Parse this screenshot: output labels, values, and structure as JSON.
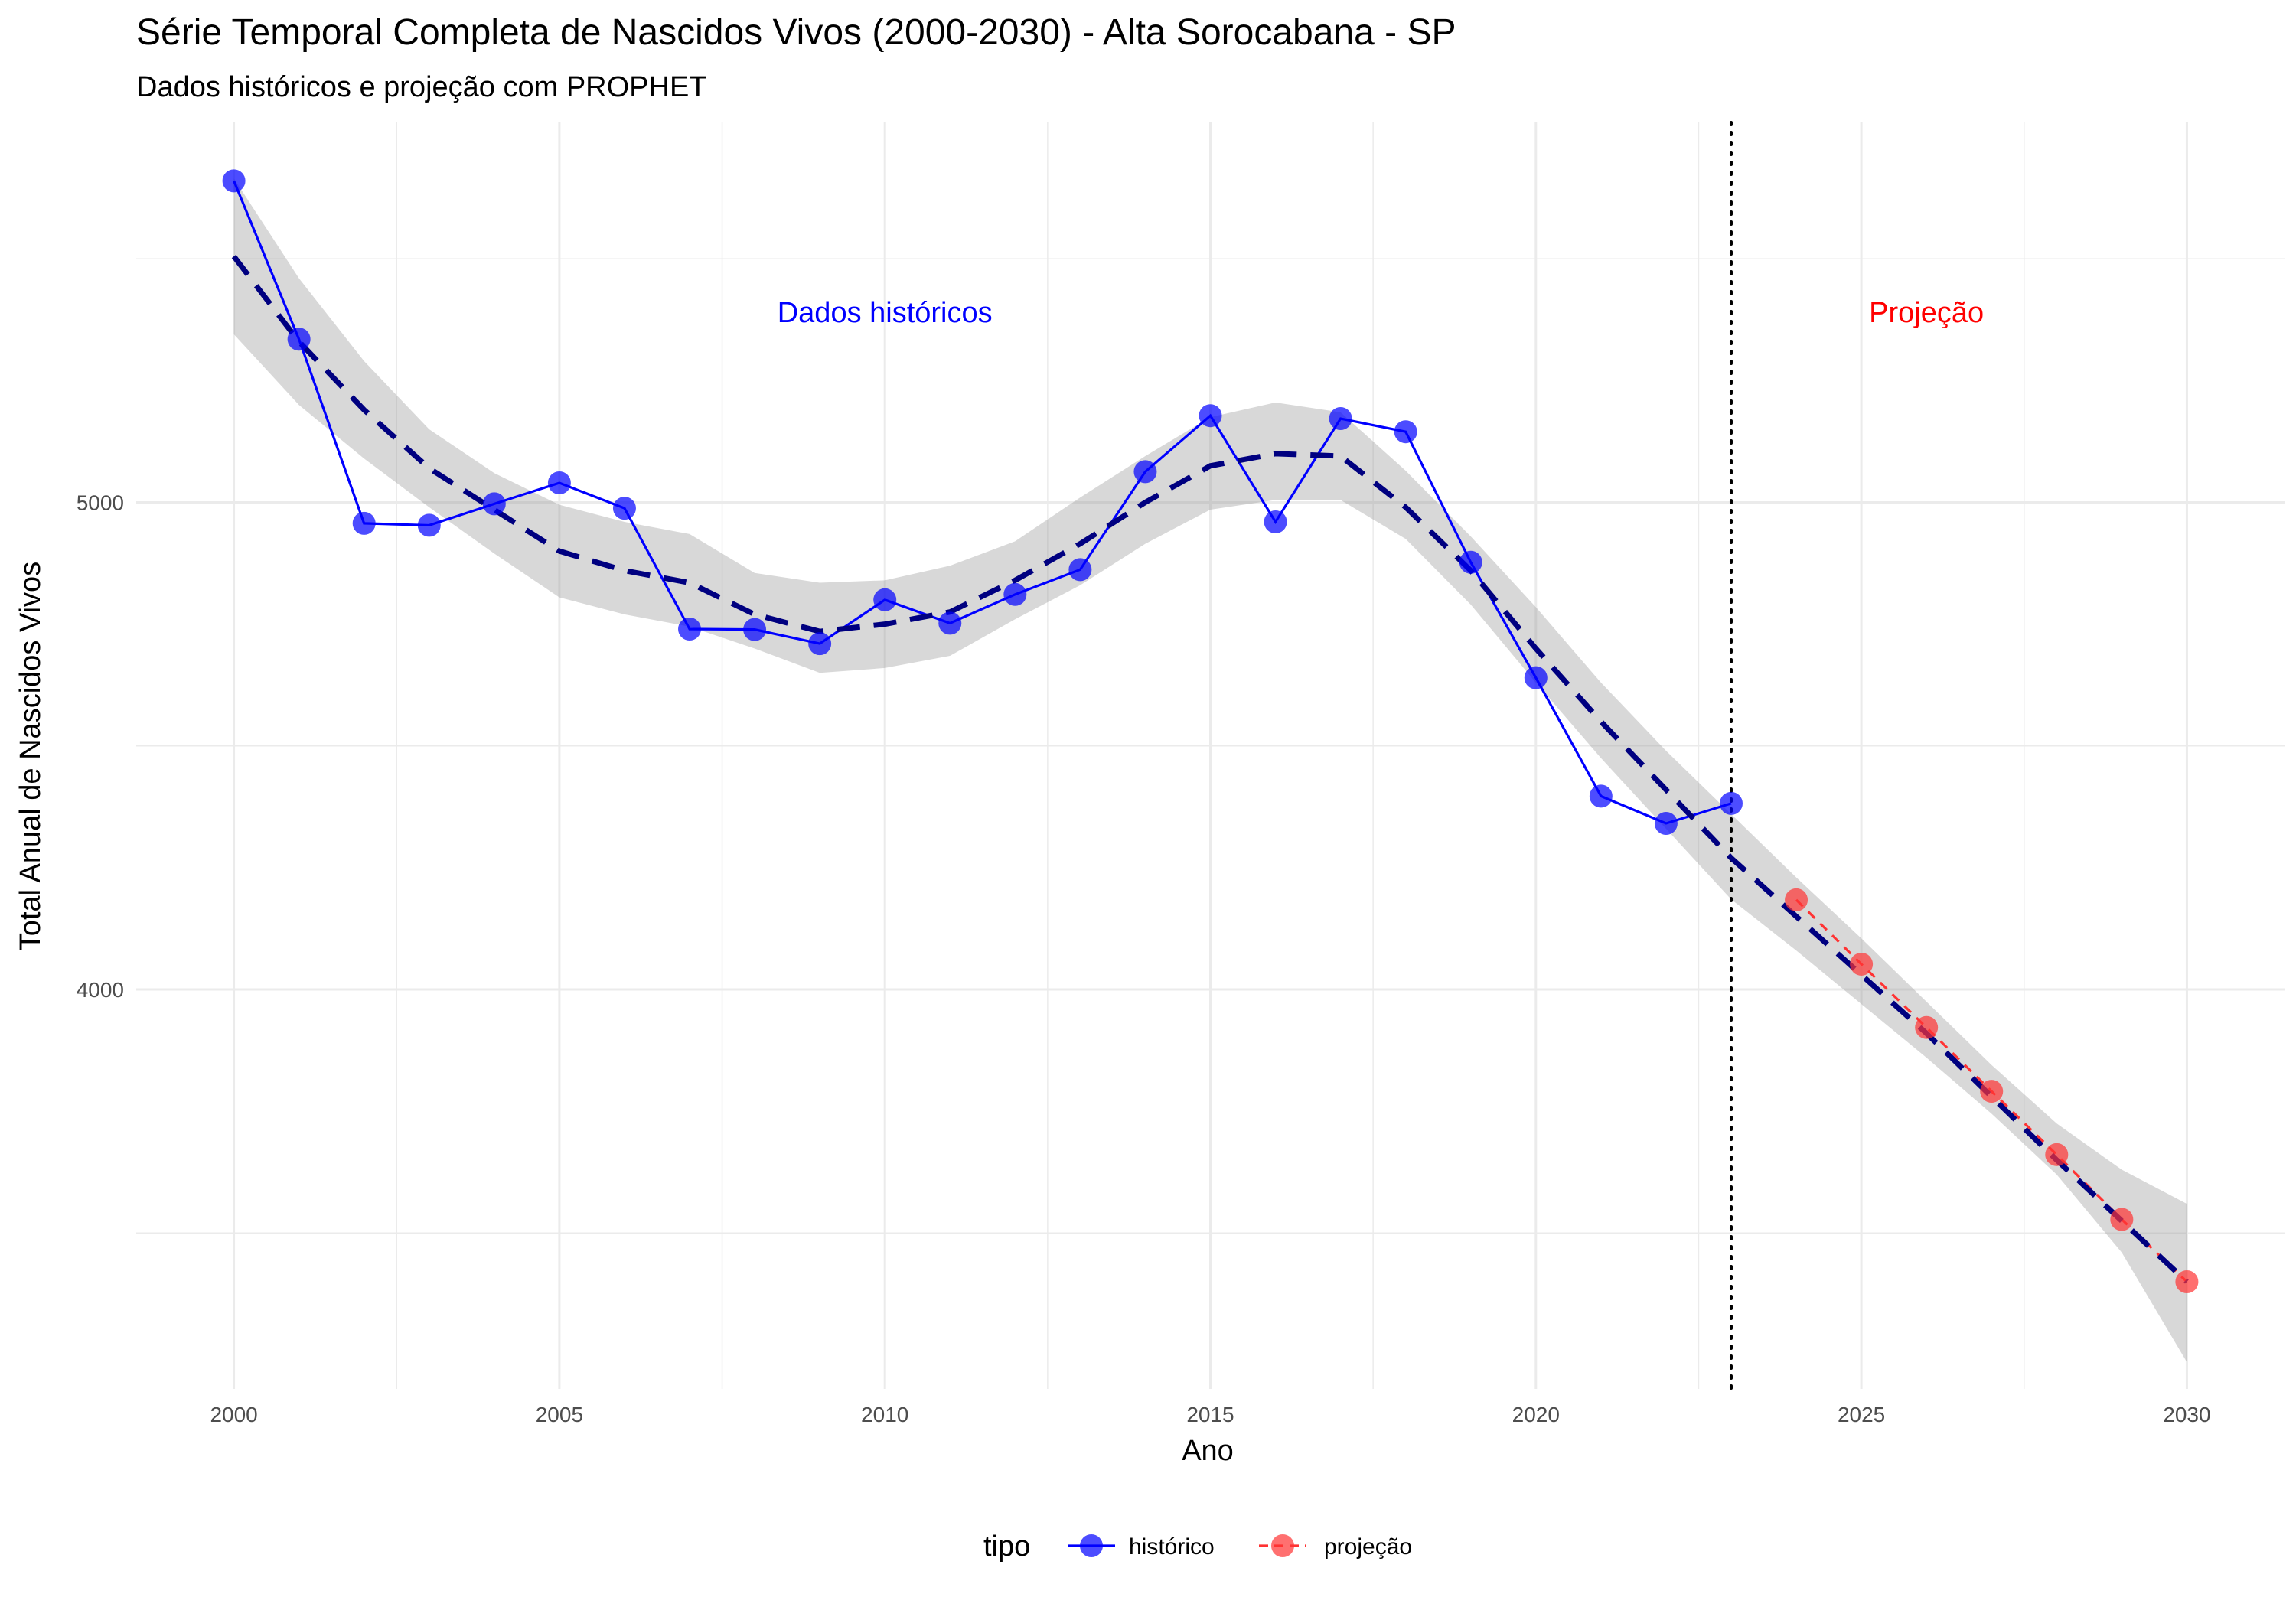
{
  "chart_data": {
    "type": "line",
    "title": "Série Temporal Completa de Nascidos Vivos (2000-2030) -  Alta Sorocabana - SP",
    "subtitle": "Dados históricos e projeção com PROPHET",
    "xlabel": "Ano",
    "ylabel": "Total Anual de Nascidos Vivos",
    "xlim": [
      1998.5,
      2031.5
    ],
    "ylim": [
      3180,
      5780
    ],
    "x_ticks": [
      2000,
      2005,
      2010,
      2015,
      2020,
      2025,
      2030
    ],
    "x_tick_labels": [
      "2000",
      "2005",
      "2010",
      "2015",
      "2020",
      "2025",
      "2030"
    ],
    "y_ticks": [
      4000,
      5000
    ],
    "y_tick_labels": [
      "4000",
      "5000"
    ],
    "y_minor_grid": [
      3500,
      4500,
      5500
    ],
    "grid": true,
    "legend": {
      "title": "tipo",
      "position": "bottom",
      "entries": [
        {
          "label": "histórico",
          "color": "#0000ff"
        },
        {
          "label": "projeção",
          "color": "#ff3333"
        }
      ]
    },
    "annotations": [
      {
        "text": "Dados históricos",
        "x": 2010,
        "y": 5370,
        "color": "#0000ff"
      },
      {
        "text": "Projeção",
        "x": 2026,
        "y": 5370,
        "color": "#ff0000"
      }
    ],
    "vline": {
      "x": 2023,
      "style": "dotted",
      "color": "#000000"
    },
    "series": [
      {
        "name": "histórico",
        "color": "#0000ff",
        "x": [
          2000,
          2001,
          2002,
          2003,
          2004,
          2005,
          2006,
          2007,
          2008,
          2009,
          2010,
          2011,
          2012,
          2013,
          2014,
          2015,
          2016,
          2017,
          2018,
          2019,
          2020,
          2021,
          2022,
          2023
        ],
        "y": [
          5660,
          5335,
          4957,
          4953,
          4997,
          5040,
          4988,
          4740,
          4739,
          4710,
          4800,
          4752,
          4811,
          4862,
          5063,
          5178,
          4960,
          5172,
          5145,
          4877,
          4640,
          4397,
          4341,
          4382
        ]
      },
      {
        "name": "projeção",
        "color": "#ff3333",
        "x": [
          2024,
          2025,
          2026,
          2027,
          2028,
          2029,
          2030
        ],
        "y": [
          4184,
          4052,
          3922,
          3791,
          3661,
          3528,
          3400
        ]
      }
    ],
    "trend": {
      "color": "#000080",
      "style": "dashed",
      "x": [
        2000,
        2001,
        2002,
        2003,
        2004,
        2005,
        2006,
        2007,
        2008,
        2009,
        2010,
        2011,
        2012,
        2013,
        2014,
        2015,
        2016,
        2017,
        2018,
        2019,
        2020,
        2021,
        2022,
        2023,
        2024,
        2025,
        2026,
        2027,
        2028,
        2029,
        2030
      ],
      "y": [
        5505,
        5330,
        5190,
        5070,
        4985,
        4900,
        4860,
        4835,
        4770,
        4735,
        4750,
        4775,
        4840,
        4915,
        5000,
        5075,
        5100,
        5095,
        4990,
        4860,
        4700,
        4550,
        4410,
        4270,
        4150,
        4030,
        3910,
        3780,
        3650,
        3525,
        3400
      ],
      "ci_lower": [
        5345,
        5200,
        5090,
        4990,
        4895,
        4805,
        4770,
        4745,
        4700,
        4650,
        4660,
        4685,
        4760,
        4830,
        4915,
        4985,
        5005,
        5005,
        4925,
        4790,
        4630,
        4475,
        4330,
        4185,
        4080,
        3970,
        3860,
        3745,
        3620,
        3460,
        3235
      ],
      "ci_upper": [
        5665,
        5460,
        5290,
        5150,
        5060,
        4995,
        4960,
        4935,
        4855,
        4835,
        4840,
        4870,
        4920,
        5010,
        5095,
        5175,
        5205,
        5185,
        5065,
        4930,
        4785,
        4630,
        4490,
        4360,
        4230,
        4105,
        3975,
        3845,
        3725,
        3630,
        3560
      ]
    }
  }
}
